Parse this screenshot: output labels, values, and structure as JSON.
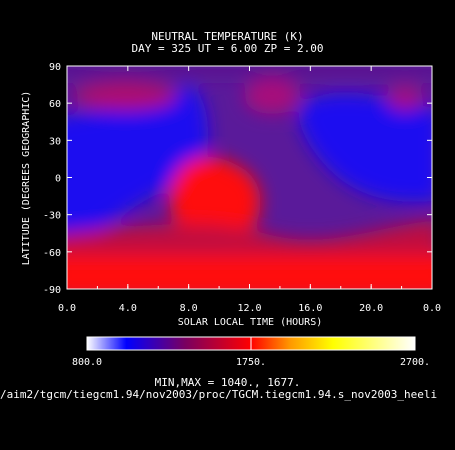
{
  "chart_data": {
    "type": "heatmap",
    "title": "NEUTRAL TEMPERATURE (K)",
    "subtitle": "DAY = 325   UT =  6.00  ZP =    2.00",
    "xlabel": "SOLAR LOCAL TIME (HOURS)",
    "ylabel": "LATITUDE (DEGREES GEOGRAPHIC)",
    "xlim": [
      0,
      24
    ],
    "ylim": [
      -90,
      90
    ],
    "x_ticks": [
      "0.0",
      "4.0",
      "8.0",
      "12.0",
      "16.0",
      "20.0",
      "0.0"
    ],
    "y_ticks": [
      "90",
      "60",
      "30",
      "0",
      "-30",
      "-60",
      "-90"
    ],
    "colorbar": {
      "min": 800,
      "max": 2700,
      "labels": [
        "800.0",
        "1750.",
        "2700."
      ],
      "colors": [
        "#ffffff",
        "#0000ff",
        "#7a0060",
        "#ff0000",
        "#ff9900",
        "#ffff00",
        "#ffffff"
      ]
    },
    "field": {
      "description_free": true,
      "min_label": "MIN,MAX =",
      "min": "1040.,",
      "max": "1677."
    },
    "minmax_text": "MIN,MAX =        1040.,      1677.",
    "file_path": "/aim2/tgcm/tiegcm1.94/nov2003/proc/TGCM.tiegcm1.94.s_nov2003_heeli"
  }
}
